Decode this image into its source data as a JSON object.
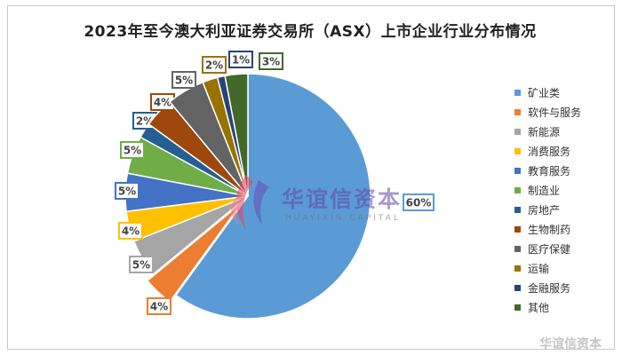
{
  "chart_data": {
    "type": "pie",
    "title": "2023年至今澳大利亚证券交易所（ASX）上市企业行业分布情况",
    "categories": [
      "矿业类",
      "软件与服务",
      "新能源",
      "消费服务",
      "教育服务",
      "制造业",
      "房地产",
      "生物制药",
      "医疗保健",
      "运输",
      "金融服务",
      "其他"
    ],
    "values": [
      60,
      4,
      5,
      4,
      5,
      5,
      2,
      4,
      5,
      2,
      1,
      3
    ],
    "labels": [
      "60%",
      "4%",
      "5%",
      "4%",
      "5%",
      "5%",
      "2%",
      "4%",
      "5%",
      "2%",
      "1%",
      "3%"
    ],
    "colors": [
      "#5b9bd5",
      "#ed7d31",
      "#a5a5a5",
      "#ffc000",
      "#4472c4",
      "#70ad47",
      "#255e91",
      "#9e480e",
      "#636363",
      "#997300",
      "#264478",
      "#43682b"
    ],
    "legend_position": "right",
    "exploded_slice": "软件与服务"
  },
  "watermark": {
    "logo_text": "华谊信资本",
    "logo_subtext": "HUAYIXIN CAPITAL",
    "corner_text": "华谊信资本"
  }
}
